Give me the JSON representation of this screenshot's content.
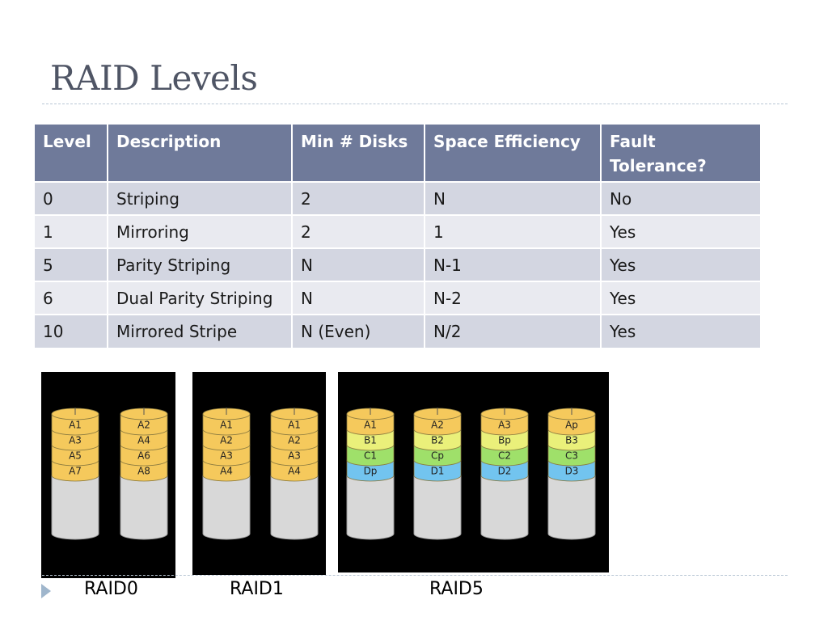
{
  "slide": {
    "title": "RAID Levels"
  },
  "table": {
    "headers": [
      "Level",
      "Description",
      "Min # Disks",
      "Space Efficiency",
      "Fault Tolerance?"
    ],
    "rows": [
      [
        "0",
        "Striping",
        "2",
        "N",
        "No"
      ],
      [
        "1",
        "Mirroring",
        "2",
        "1",
        "Yes"
      ],
      [
        "5",
        "Parity Striping",
        "N",
        "N-1",
        "Yes"
      ],
      [
        "6",
        "Dual Parity Striping",
        "N",
        "N-2",
        "Yes"
      ],
      [
        "10",
        "Mirrored Stripe",
        "N (Even)",
        "N/2",
        "Yes"
      ]
    ]
  },
  "diagrams": {
    "raid0": {
      "caption": "RAID0",
      "disks": [
        [
          "A1",
          "A3",
          "A5",
          "A7"
        ],
        [
          "A2",
          "A4",
          "A6",
          "A8"
        ]
      ]
    },
    "raid1": {
      "caption": "RAID1",
      "disks": [
        [
          "A1",
          "A2",
          "A3",
          "A4"
        ],
        [
          "A1",
          "A2",
          "A3",
          "A4"
        ]
      ]
    },
    "raid5": {
      "caption": "RAID5",
      "disks": [
        [
          "A1",
          "B1",
          "C1",
          "Dp"
        ],
        [
          "A2",
          "B2",
          "Cp",
          "D1"
        ],
        [
          "A3",
          "Bp",
          "C2",
          "D2"
        ],
        [
          "Ap",
          "B3",
          "C3",
          "D3"
        ]
      ]
    }
  },
  "colors": {
    "header_bg": "#6f7a9a",
    "row_odd": "#d3d6e1",
    "row_even": "#e9eaf0",
    "stripe_a": "#f5c95c",
    "stripe_b": "#eaf07a",
    "stripe_c": "#9fe06a",
    "stripe_d": "#72c4ef",
    "disk_body": "#d8d8d8"
  }
}
